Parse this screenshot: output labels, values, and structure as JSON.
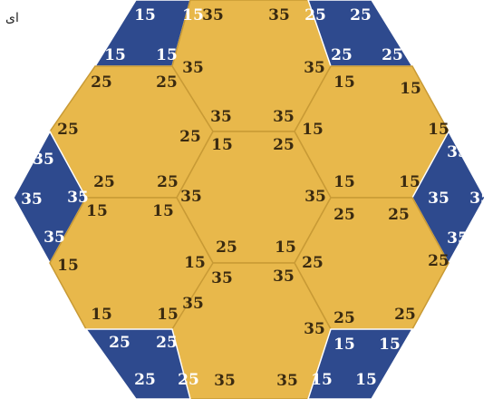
{
  "corner_text": "ای",
  "colors": {
    "gold": "#E8B84B",
    "navy": "#2E4A8E",
    "dark_text": "#3A2A10",
    "light_text": "#FFFFFF",
    "line": "#7a6a4a"
  },
  "pieces": [
    {
      "id": "top-left-blue",
      "color": "navy",
      "labels": [
        "15",
        "15",
        "15",
        "15"
      ]
    },
    {
      "id": "top-center-hex",
      "color": "gold",
      "labels": [
        "35",
        "35",
        "35",
        "35",
        "35",
        "35"
      ]
    },
    {
      "id": "top-right-blue",
      "color": "navy",
      "labels": [
        "25",
        "25",
        "25",
        "25"
      ]
    },
    {
      "id": "upper-left-hex",
      "color": "gold",
      "labels": [
        "25",
        "25",
        "25",
        "25",
        "25",
        "25"
      ]
    },
    {
      "id": "upper-right-hex",
      "color": "gold",
      "labels": [
        "15",
        "15",
        "15",
        "15",
        "15",
        "15"
      ]
    },
    {
      "id": "center-hex",
      "color": "gold",
      "labels": [
        "15",
        "25",
        "35",
        "35",
        "25",
        "15"
      ]
    },
    {
      "id": "left-blue",
      "color": "navy",
      "labels": [
        "35",
        "35",
        "35",
        "35"
      ]
    },
    {
      "id": "right-blue",
      "color": "navy",
      "labels": [
        "35",
        "35",
        "35",
        "35"
      ]
    },
    {
      "id": "lower-left-hex",
      "color": "gold",
      "labels": [
        "15",
        "15",
        "15",
        "15",
        "15",
        "15"
      ]
    },
    {
      "id": "lower-right-hex",
      "color": "gold",
      "labels": [
        "25",
        "25",
        "25",
        "25",
        "25",
        "25"
      ]
    },
    {
      "id": "bottom-center-hex",
      "color": "gold",
      "labels": [
        "35",
        "35",
        "35",
        "35",
        "35",
        "35"
      ]
    },
    {
      "id": "bottom-left-blue",
      "color": "navy",
      "labels": [
        "25",
        "25",
        "25",
        "25"
      ]
    },
    {
      "id": "bottom-right-blue",
      "color": "navy",
      "labels": [
        "15",
        "15",
        "15",
        "15"
      ]
    }
  ]
}
